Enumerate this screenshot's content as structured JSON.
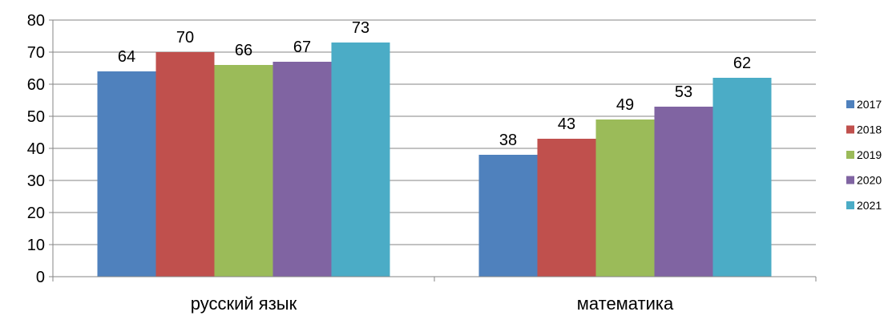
{
  "chart_data": {
    "type": "bar",
    "categories": [
      "русский язык",
      "математика"
    ],
    "series": [
      {
        "name": "2017",
        "color": "#4F81BD",
        "values": [
          64,
          38
        ]
      },
      {
        "name": "2018",
        "color": "#C0504D",
        "values": [
          70,
          43
        ]
      },
      {
        "name": "2019",
        "color": "#9BBB59",
        "values": [
          66,
          49
        ]
      },
      {
        "name": "2020",
        "color": "#8064A2",
        "values": [
          67,
          53
        ]
      },
      {
        "name": "2021",
        "color": "#4BACC6",
        "values": [
          73,
          62
        ]
      }
    ],
    "title": "",
    "xlabel": "",
    "ylabel": "",
    "ylim": [
      0,
      80
    ],
    "yticks": [
      0,
      10,
      20,
      30,
      40,
      50,
      60,
      70,
      80
    ],
    "grid": true,
    "data_labels": true,
    "legend_position": "right"
  }
}
